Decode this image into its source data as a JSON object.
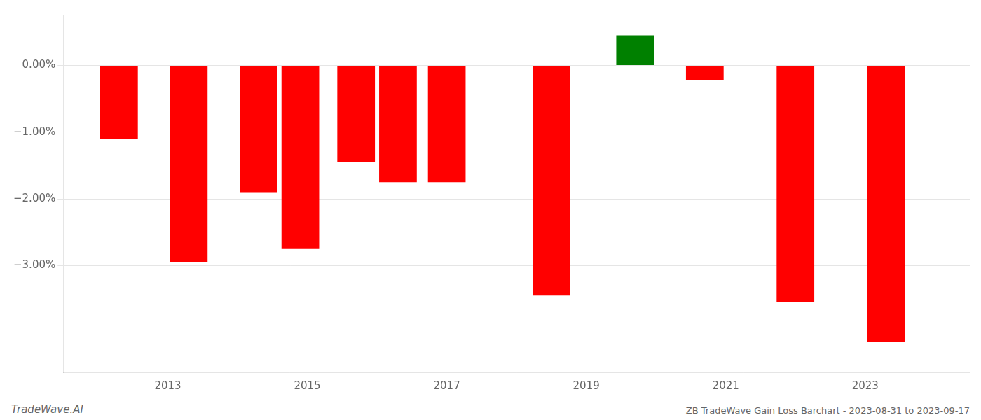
{
  "chart_data": {
    "type": "bar",
    "title": "ZB TradeWave Gain Loss Barchart - 2023-08-31 to 2023-09-17",
    "annotations": [
      "TradeWave.AI"
    ],
    "x": [
      2012.3,
      2013.3,
      2014.3,
      2014.9,
      2015.7,
      2016.3,
      2017.0,
      2018.5,
      2019.7,
      2020.7,
      2022.0,
      2023.3
    ],
    "values": [
      -1.1,
      -2.95,
      -1.9,
      -2.75,
      -1.45,
      -1.75,
      -1.75,
      -3.45,
      0.45,
      -0.22,
      -3.55,
      -4.15
    ],
    "colors": [
      "#FF0000",
      "#FF0000",
      "#FF0000",
      "#FF0000",
      "#FF0000",
      "#FF0000",
      "#FF0000",
      "#FF0000",
      "#008000",
      "#FF0000",
      "#FF0000",
      "#FF0000"
    ],
    "xlim": [
      2011.5,
      2024.5
    ],
    "xticks": [
      2013,
      2015,
      2017,
      2019,
      2021,
      2023
    ],
    "ylim": [
      -4.6,
      0.75
    ],
    "yticks": [
      {
        "value": 0.0,
        "label": "0.00%"
      },
      {
        "value": -1.0,
        "label": "−1.00%"
      },
      {
        "value": -2.0,
        "label": "−2.00%"
      },
      {
        "value": -3.0,
        "label": "−3.00%"
      }
    ],
    "grid": true
  }
}
